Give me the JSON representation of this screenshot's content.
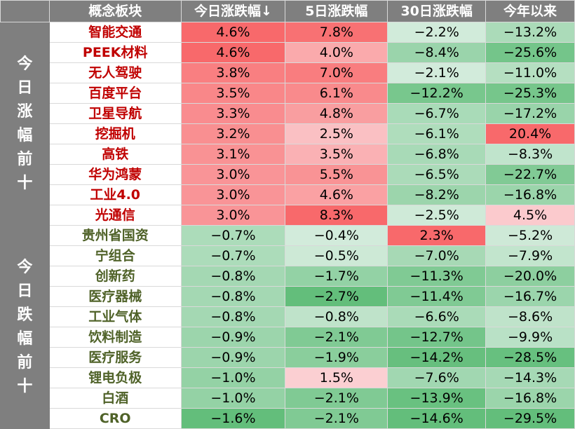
{
  "header": {
    "concept": "概念板块",
    "today": "今日涨跌幅↓",
    "d5": "5日涨跌幅",
    "d30": "30日涨跌幅",
    "ytd": "今年以来"
  },
  "groups": {
    "top_gainers": "今日涨幅前十",
    "top_losers": "今日跌幅前十"
  },
  "colors": {
    "header_bg": "#7f7f7f",
    "up_text": "#c00000",
    "down_text": "#4f6228",
    "positive_scale": "#f8696b",
    "negative_scale": "#63be7b"
  },
  "rows": [
    {
      "name": "智能交通",
      "today": "4.6%",
      "d5": "7.8%",
      "d30": "−2.2%",
      "ytd": "−13.2%"
    },
    {
      "name": "PEEK材料",
      "today": "4.6%",
      "d5": "4.0%",
      "d30": "−8.4%",
      "ytd": "−25.6%"
    },
    {
      "name": "无人驾驶",
      "today": "3.8%",
      "d5": "7.0%",
      "d30": "−2.1%",
      "ytd": "−11.0%"
    },
    {
      "name": "百度平台",
      "today": "3.5%",
      "d5": "6.1%",
      "d30": "−12.2%",
      "ytd": "−25.3%"
    },
    {
      "name": "卫星导航",
      "today": "3.3%",
      "d5": "4.8%",
      "d30": "−6.7%",
      "ytd": "−17.2%"
    },
    {
      "name": "挖掘机",
      "today": "3.2%",
      "d5": "2.5%",
      "d30": "−6.1%",
      "ytd": "20.4%"
    },
    {
      "name": "高铁",
      "today": "3.1%",
      "d5": "3.5%",
      "d30": "−6.8%",
      "ytd": "−8.3%"
    },
    {
      "name": "华为鸿蒙",
      "today": "3.0%",
      "d5": "5.5%",
      "d30": "−6.5%",
      "ytd": "−22.7%"
    },
    {
      "name": "工业4.0",
      "today": "3.0%",
      "d5": "4.6%",
      "d30": "−8.2%",
      "ytd": "−16.8%"
    },
    {
      "name": "光通信",
      "today": "3.0%",
      "d5": "8.3%",
      "d30": "−2.5%",
      "ytd": "4.5%"
    },
    {
      "name": "贵州省国资",
      "today": "−0.7%",
      "d5": "−0.4%",
      "d30": "2.3%",
      "ytd": "−5.2%"
    },
    {
      "name": "宁组合",
      "today": "−0.7%",
      "d5": "−0.5%",
      "d30": "−7.0%",
      "ytd": "−7.9%"
    },
    {
      "name": "创新药",
      "today": "−0.8%",
      "d5": "−1.7%",
      "d30": "−11.3%",
      "ytd": "−20.0%"
    },
    {
      "name": "医疗器械",
      "today": "−0.8%",
      "d5": "−2.7%",
      "d30": "−11.4%",
      "ytd": "−16.7%"
    },
    {
      "name": "工业气体",
      "today": "−0.8%",
      "d5": "−0.8%",
      "d30": "−6.6%",
      "ytd": "−8.6%"
    },
    {
      "name": "饮料制造",
      "today": "−0.9%",
      "d5": "−2.1%",
      "d30": "−12.7%",
      "ytd": "−9.9%"
    },
    {
      "name": "医疗服务",
      "today": "−0.9%",
      "d5": "−1.9%",
      "d30": "−14.2%",
      "ytd": "−28.5%"
    },
    {
      "name": "锂电负极",
      "today": "−1.0%",
      "d5": "1.5%",
      "d30": "−7.6%",
      "ytd": "−14.3%"
    },
    {
      "name": "白酒",
      "today": "−1.0%",
      "d5": "−2.1%",
      "d30": "−13.9%",
      "ytd": "−16.8%"
    },
    {
      "name": "CRO",
      "today": "−1.6%",
      "d5": "−2.1%",
      "d30": "−14.6%",
      "ytd": "−29.5%"
    }
  ]
}
